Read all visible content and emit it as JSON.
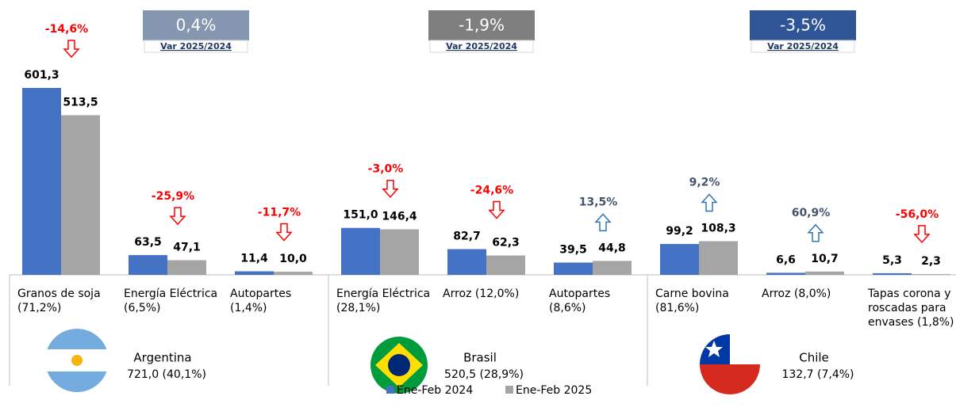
{
  "chart_data": {
    "type": "bar",
    "categories": [
      [
        "Granos de soja",
        "(71,2%)"
      ],
      [
        "Energía Eléctrica",
        "(6,5%)"
      ],
      [
        "Autopartes",
        "(1,4%)"
      ],
      [
        "Energía Eléctrica",
        "(28,1%)"
      ],
      [
        "Arroz (12,0%)"
      ],
      [
        "Autopartes",
        "(8,6%)"
      ],
      [
        "Carne bovina",
        "(81,6%)"
      ],
      [
        "Arroz (8,0%)"
      ],
      [
        "Tapas corona y",
        "roscadas para",
        "envases (1,8%)"
      ]
    ],
    "series": [
      {
        "name": "Ene-Feb 2024",
        "color": "#4472c4",
        "values": [
          601.3,
          63.5,
          11.4,
          151.0,
          82.7,
          39.5,
          99.2,
          6.6,
          5.3
        ],
        "value_labels": [
          "601,3",
          "63,5",
          "11,4",
          "151,0",
          "82,7",
          "39,5",
          "99,2",
          "6,6",
          "5,3"
        ]
      },
      {
        "name": "Ene-Feb 2025",
        "color": "#a5a5a5",
        "values": [
          513.5,
          47.1,
          10.0,
          146.4,
          62.3,
          44.8,
          108.3,
          10.7,
          2.3
        ],
        "value_labels": [
          "513,5",
          "47,1",
          "10,0",
          "146,4",
          "62,3",
          "44,8",
          "108,3",
          "10,7",
          "2,3"
        ]
      }
    ],
    "variations": {
      "values": [
        -14.6,
        -25.9,
        -11.7,
        -3.0,
        -24.6,
        13.5,
        9.2,
        60.9,
        -56.0
      ],
      "value_labels": [
        "-14,6%",
        "-25,9%",
        "-11,7%",
        "-3,0%",
        "-24,6%",
        "13,5%",
        "9,2%",
        "60,9%",
        "-56,0%"
      ]
    },
    "down_color": "#ff0000",
    "up_color": "#44546a",
    "groups": [
      {
        "name": "Argentina",
        "total": "721,0 (40,1%)",
        "var": {
          "value": 0.4,
          "label": "0,4%"
        },
        "var_caption": "Var 2025/2024",
        "color": "#8496b0"
      },
      {
        "name": "Brasil",
        "total": "520,5 (28,9%)",
        "var": {
          "value": -1.9,
          "label": "-1,9%"
        },
        "var_caption": "Var 2025/2024",
        "color": "#7f7f7f"
      },
      {
        "name": "Chile",
        "total": "132,7 (7,4%)",
        "var": {
          "value": -3.5,
          "label": "-3,5%"
        },
        "var_caption": "Var 2025/2024",
        "color": "#2f5597"
      }
    ]
  }
}
